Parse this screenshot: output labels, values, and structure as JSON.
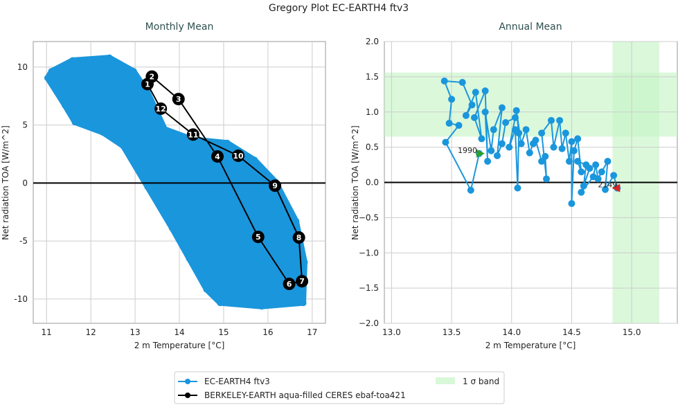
{
  "title": "Gregory Plot EC-EARTH4 ftv3",
  "colors": {
    "model": "#1a96dc",
    "obs": "#000000",
    "band": "#c8f5c8",
    "start": "#2ca02c",
    "end": "#d62728"
  },
  "legend": {
    "placement": "bottom-center",
    "model": "EC-EARTH4 ftv3",
    "obs": "BERKELEY-EARTH aqua-filled CERES ebaf-toa421",
    "band": "1 σ band"
  },
  "chart_data": [
    {
      "type": "line",
      "title": "Monthly Mean",
      "xlabel": "2 m Temperature [°C]",
      "ylabel": "Net radiation TOA [W/m^2]",
      "xlim": [
        10.7,
        17.3
      ],
      "ylim": [
        -12.1,
        12.2
      ],
      "xticks": [
        11,
        12,
        13,
        14,
        15,
        16,
        17
      ],
      "yticks": [
        -10,
        -5,
        0,
        5,
        10
      ],
      "grid": true,
      "model_envelope": [
        [
          11.11,
          9.65
        ],
        [
          11.59,
          10.59
        ],
        [
          12.42,
          10.82
        ],
        [
          12.97,
          9.65
        ],
        [
          13.28,
          7.88
        ],
        [
          13.67,
          4.65
        ],
        [
          14.3,
          3.76
        ],
        [
          15.08,
          3.47
        ],
        [
          15.7,
          2.0
        ],
        [
          16.17,
          0.12
        ],
        [
          16.64,
          -3.29
        ],
        [
          16.83,
          -6.82
        ],
        [
          16.8,
          -10.35
        ],
        [
          15.86,
          -10.65
        ],
        [
          14.92,
          -10.35
        ],
        [
          14.61,
          -9.18
        ],
        [
          14.22,
          -6.53
        ],
        [
          13.83,
          -3.88
        ],
        [
          13.28,
          -0.35
        ],
        [
          12.73,
          3.18
        ],
        [
          12.27,
          4.35
        ],
        [
          11.64,
          5.24
        ],
        [
          11.41,
          6.71
        ],
        [
          11.02,
          9.06
        ]
      ],
      "obs_climatology": {
        "months": [
          "1",
          "2",
          "3",
          "4",
          "5",
          "6",
          "7",
          "8",
          "9",
          "10",
          "11",
          "12"
        ],
        "x": [
          13.28,
          13.38,
          13.98,
          14.86,
          15.78,
          16.48,
          16.77,
          16.7,
          16.16,
          15.33,
          14.31,
          13.58
        ],
        "y": [
          8.53,
          9.18,
          7.24,
          2.29,
          -4.65,
          -8.7,
          -8.47,
          -4.7,
          -0.23,
          2.35,
          4.18,
          6.41
        ]
      }
    },
    {
      "type": "line",
      "title": "Annual Mean",
      "xlabel": "2 m Temperature [°C]",
      "ylabel": "Net radiation TOA [W/m^2]",
      "xlim": [
        12.94,
        15.38
      ],
      "ylim": [
        -2.0,
        2.0
      ],
      "xticks": [
        "13.0",
        "13.5",
        "14.0",
        "14.5",
        "15.0"
      ],
      "yticks": [
        "−2.0",
        "−1.5",
        "−1.0",
        "−0.5",
        "0.0",
        "0.5",
        "1.0",
        "1.5",
        "2.0"
      ],
      "grid": true,
      "band_y": [
        0.65,
        1.56
      ],
      "band_x": [
        14.84,
        15.23
      ],
      "start_label": "1990",
      "end_label": "2149",
      "model_annual": [
        [
          13.73,
          0.41
        ],
        [
          13.66,
          -0.11
        ],
        [
          13.45,
          0.57
        ],
        [
          13.56,
          0.81
        ],
        [
          13.48,
          0.84
        ],
        [
          13.5,
          1.18
        ],
        [
          13.44,
          1.44
        ],
        [
          13.59,
          1.42
        ],
        [
          13.67,
          1.1
        ],
        [
          13.62,
          0.95
        ],
        [
          13.7,
          1.28
        ],
        [
          13.75,
          0.62
        ],
        [
          13.69,
          0.92
        ],
        [
          13.78,
          1.3
        ],
        [
          13.8,
          0.3
        ],
        [
          13.78,
          1.0
        ],
        [
          13.83,
          0.45
        ],
        [
          13.85,
          0.75
        ],
        [
          13.92,
          1.06
        ],
        [
          13.88,
          0.38
        ],
        [
          13.92,
          0.55
        ],
        [
          13.95,
          0.85
        ],
        [
          14.03,
          0.92
        ],
        [
          13.98,
          0.5
        ],
        [
          14.03,
          0.75
        ],
        [
          14.05,
          -0.08
        ],
        [
          14.06,
          0.7
        ],
        [
          14.04,
          1.02
        ],
        [
          14.08,
          0.55
        ],
        [
          14.12,
          0.75
        ],
        [
          14.15,
          0.42
        ],
        [
          14.18,
          0.55
        ],
        [
          14.2,
          0.6
        ],
        [
          14.25,
          0.3
        ],
        [
          14.28,
          0.37
        ],
        [
          14.29,
          0.05
        ],
        [
          14.25,
          0.7
        ],
        [
          14.33,
          0.88
        ],
        [
          14.35,
          0.5
        ],
        [
          14.4,
          0.88
        ],
        [
          14.42,
          0.48
        ],
        [
          14.45,
          0.7
        ],
        [
          14.48,
          0.3
        ],
        [
          14.5,
          0.58
        ],
        [
          14.5,
          -0.3
        ],
        [
          14.52,
          0.45
        ],
        [
          14.55,
          0.62
        ],
        [
          14.58,
          0.15
        ],
        [
          14.55,
          0.3
        ],
        [
          14.62,
          0.25
        ],
        [
          14.6,
          -0.05
        ],
        [
          14.65,
          0.2
        ],
        [
          14.58,
          -0.14
        ],
        [
          14.68,
          0.08
        ],
        [
          14.7,
          0.25
        ],
        [
          14.72,
          0.05
        ],
        [
          14.75,
          0.15
        ],
        [
          14.8,
          0.3
        ],
        [
          14.78,
          -0.1
        ],
        [
          14.85,
          0.1
        ],
        [
          14.88,
          -0.08
        ]
      ]
    }
  ]
}
